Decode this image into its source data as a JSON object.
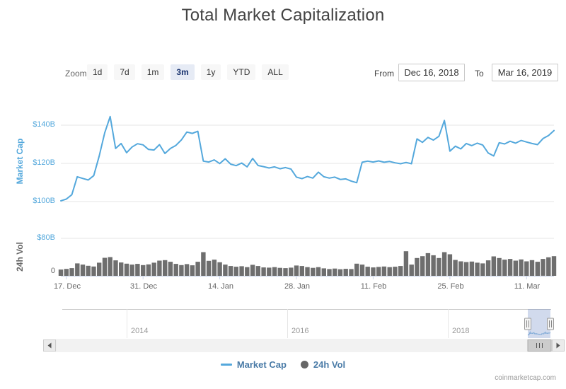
{
  "title": "Total Market Capitalization",
  "range_selector": {
    "zoom_label": "Zoom",
    "buttons": [
      {
        "label": "1d",
        "selected": false
      },
      {
        "label": "7d",
        "selected": false
      },
      {
        "label": "1m",
        "selected": false
      },
      {
        "label": "3m",
        "selected": true
      },
      {
        "label": "1y",
        "selected": false
      },
      {
        "label": "YTD",
        "selected": false
      },
      {
        "label": "ALL",
        "selected": false
      }
    ],
    "from_label": "From",
    "from_value": "Dec 16, 2018",
    "to_label": "To",
    "to_value": "Mar 16, 2019"
  },
  "y_axis_market_cap": {
    "title": "Market Cap",
    "ticks": [
      "$140B",
      "$120B",
      "$100B"
    ]
  },
  "y_axis_volume": {
    "title": "24h Vol",
    "ticks": [
      "$80B",
      "0"
    ]
  },
  "x_axis": {
    "labels": [
      "17. Dec",
      "31. Dec",
      "14. Jan",
      "28. Jan",
      "11. Feb",
      "25. Feb",
      "11. Mar"
    ]
  },
  "navigator": {
    "year_labels": [
      "2014",
      "2016",
      "2018"
    ]
  },
  "legend": {
    "items": [
      {
        "label": "Market Cap",
        "symbol": "line",
        "color": "#54a8dc"
      },
      {
        "label": "24h Vol",
        "symbol": "circle",
        "color": "#666666"
      }
    ]
  },
  "credit": "coinmarketcap.com",
  "colors": {
    "line": "#54a8dc",
    "volume_bar": "#6e6e6e",
    "axis_label_blue": "#54a8dc",
    "gridline": "#e6e6e6",
    "selected_button_bg": "#e6ebf5",
    "navigator_mask": "rgba(102,133,194,0.3)"
  },
  "chart_data": {
    "type": "line",
    "title": "Total Market Capitalization",
    "unit": "USD billions",
    "visible_range": [
      "Dec 16, 2018",
      "Mar 16, 2019"
    ],
    "x_ticks": [
      "17. Dec",
      "31. Dec",
      "14. Jan",
      "28. Jan",
      "11. Feb",
      "25. Feb",
      "11. Mar"
    ],
    "ylim_market_cap_b": [
      90,
      148
    ],
    "ylim_volume_b": [
      0,
      80
    ],
    "legend_position": "bottom-center",
    "grid": "horizontal",
    "dates": [
      "Dec 16",
      "Dec 17",
      "Dec 18",
      "Dec 19",
      "Dec 20",
      "Dec 21",
      "Dec 22",
      "Dec 23",
      "Dec 24",
      "Dec 25",
      "Dec 26",
      "Dec 27",
      "Dec 28",
      "Dec 29",
      "Dec 30",
      "Dec 31",
      "Jan 1",
      "Jan 2",
      "Jan 3",
      "Jan 4",
      "Jan 5",
      "Jan 6",
      "Jan 7",
      "Jan 8",
      "Jan 9",
      "Jan 10",
      "Jan 11",
      "Jan 12",
      "Jan 13",
      "Jan 14",
      "Jan 15",
      "Jan 16",
      "Jan 17",
      "Jan 18",
      "Jan 19",
      "Jan 20",
      "Jan 21",
      "Jan 22",
      "Jan 23",
      "Jan 24",
      "Jan 25",
      "Jan 26",
      "Jan 27",
      "Jan 28",
      "Jan 29",
      "Jan 30",
      "Jan 31",
      "Feb 1",
      "Feb 2",
      "Feb 3",
      "Feb 4",
      "Feb 5",
      "Feb 6",
      "Feb 7",
      "Feb 8",
      "Feb 9",
      "Feb 10",
      "Feb 11",
      "Feb 12",
      "Feb 13",
      "Feb 14",
      "Feb 15",
      "Feb 16",
      "Feb 17",
      "Feb 18",
      "Feb 19",
      "Feb 20",
      "Feb 21",
      "Feb 22",
      "Feb 23",
      "Feb 24",
      "Feb 25",
      "Feb 26",
      "Feb 27",
      "Feb 28",
      "Mar 1",
      "Mar 2",
      "Mar 3",
      "Mar 4",
      "Mar 5",
      "Mar 6",
      "Mar 7",
      "Mar 8",
      "Mar 9",
      "Mar 10",
      "Mar 11",
      "Mar 12",
      "Mar 13",
      "Mar 14",
      "Mar 15",
      "Mar 16"
    ],
    "series": [
      {
        "name": "Market Cap",
        "type": "line",
        "color": "#54a8dc",
        "unit": "$B",
        "values": [
          100.4,
          101.3,
          103.6,
          113.0,
          112.1,
          111.3,
          113.6,
          123.8,
          136.0,
          144.5,
          127.8,
          130.4,
          125.6,
          128.6,
          130.3,
          129.7,
          127.3,
          127.0,
          129.8,
          125.2,
          127.8,
          129.4,
          132.3,
          136.4,
          135.7,
          136.8,
          121.2,
          120.7,
          121.8,
          119.9,
          122.4,
          119.6,
          118.8,
          120.2,
          118.2,
          122.6,
          118.9,
          118.3,
          117.6,
          118.2,
          117.2,
          117.8,
          117.0,
          112.8,
          112.0,
          113.1,
          112.3,
          115.4,
          113.0,
          112.3,
          112.8,
          111.6,
          111.9,
          110.7,
          109.9,
          120.6,
          121.2,
          120.7,
          121.3,
          120.6,
          121.0,
          120.3,
          119.8,
          120.5,
          119.8,
          132.8,
          131.0,
          133.6,
          132.2,
          134.2,
          142.5,
          126.4,
          129.0,
          127.6,
          130.4,
          129.3,
          130.6,
          129.6,
          125.4,
          123.9,
          130.8,
          130.2,
          131.6,
          130.6,
          132.0,
          131.2,
          130.4,
          129.8,
          133.0,
          134.6,
          137.2
        ]
      },
      {
        "name": "24h Vol",
        "type": "column",
        "color": "#6e6e6e",
        "unit": "$B",
        "values": [
          13.5,
          14.8,
          16.5,
          26.5,
          24.0,
          21.5,
          20.0,
          28.0,
          38.5,
          40.0,
          33.0,
          28.5,
          26.0,
          24.0,
          25.5,
          23.0,
          24.5,
          28.0,
          32.5,
          33.5,
          30.0,
          25.5,
          23.0,
          25.0,
          22.5,
          30.0,
          50.5,
          32.0,
          34.5,
          29.0,
          24.0,
          21.0,
          19.5,
          20.5,
          18.5,
          23.5,
          21.0,
          18.0,
          17.5,
          18.5,
          17.0,
          16.5,
          17.5,
          22.0,
          21.0,
          18.5,
          17.0,
          18.5,
          16.0,
          14.5,
          15.5,
          14.0,
          15.0,
          14.5,
          26.0,
          24.0,
          19.5,
          18.0,
          19.0,
          20.0,
          18.5,
          19.5,
          21.0,
          52.5,
          24.0,
          38.0,
          42.0,
          48.5,
          44.0,
          38.0,
          50.5,
          46.0,
          34.0,
          31.0,
          29.5,
          30.5,
          28.0,
          26.5,
          33.0,
          41.5,
          38.0,
          34.5,
          36.0,
          32.5,
          35.0,
          31.0,
          33.5,
          30.0,
          36.0,
          39.5,
          42.0
        ]
      }
    ],
    "navigator_year_ticks": [
      "2014",
      "2016",
      "2018"
    ]
  }
}
